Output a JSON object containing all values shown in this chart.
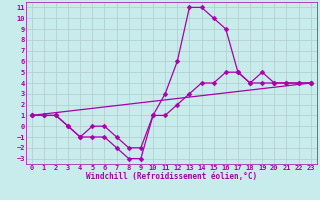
{
  "xlabel": "Windchill (Refroidissement éolien,°C)",
  "background_color": "#c8ecec",
  "grid_color": "#b0cccc",
  "line_color": "#aa00aa",
  "xlim": [
    -0.5,
    23.5
  ],
  "ylim": [
    -3.5,
    11.5
  ],
  "xticks": [
    0,
    1,
    2,
    3,
    4,
    5,
    6,
    7,
    8,
    9,
    10,
    11,
    12,
    13,
    14,
    15,
    16,
    17,
    18,
    19,
    20,
    21,
    22,
    23
  ],
  "yticks": [
    -3,
    -2,
    -1,
    0,
    1,
    2,
    3,
    4,
    5,
    6,
    7,
    8,
    9,
    10,
    11
  ],
  "curve1_x": [
    0,
    1,
    2,
    3,
    4,
    5,
    6,
    7,
    8,
    9,
    10,
    11,
    12,
    13,
    14,
    15,
    16,
    17,
    18,
    19,
    20,
    21,
    22,
    23
  ],
  "curve1_y": [
    1,
    1,
    1,
    0,
    -1,
    -1,
    -1,
    -2,
    -3,
    -3,
    1,
    3,
    6,
    11,
    11,
    10,
    9,
    5,
    4,
    5,
    4,
    4,
    4,
    4
  ],
  "curve2_x": [
    0,
    1,
    2,
    3,
    4,
    5,
    6,
    7,
    8,
    9,
    10,
    11,
    12,
    13,
    14,
    15,
    16,
    17,
    18,
    19,
    20,
    21,
    22,
    23
  ],
  "curve2_y": [
    1,
    1,
    1,
    0,
    -1,
    0,
    0,
    -1,
    -2,
    -2,
    1,
    1,
    2,
    3,
    4,
    4,
    5,
    5,
    4,
    4,
    4,
    4,
    4,
    4
  ],
  "curve3_x": [
    0,
    23
  ],
  "curve3_y": [
    1,
    4
  ],
  "markersize": 2.5,
  "lw": 0.9,
  "tick_fontsize": 5,
  "xlabel_fontsize": 5.5
}
